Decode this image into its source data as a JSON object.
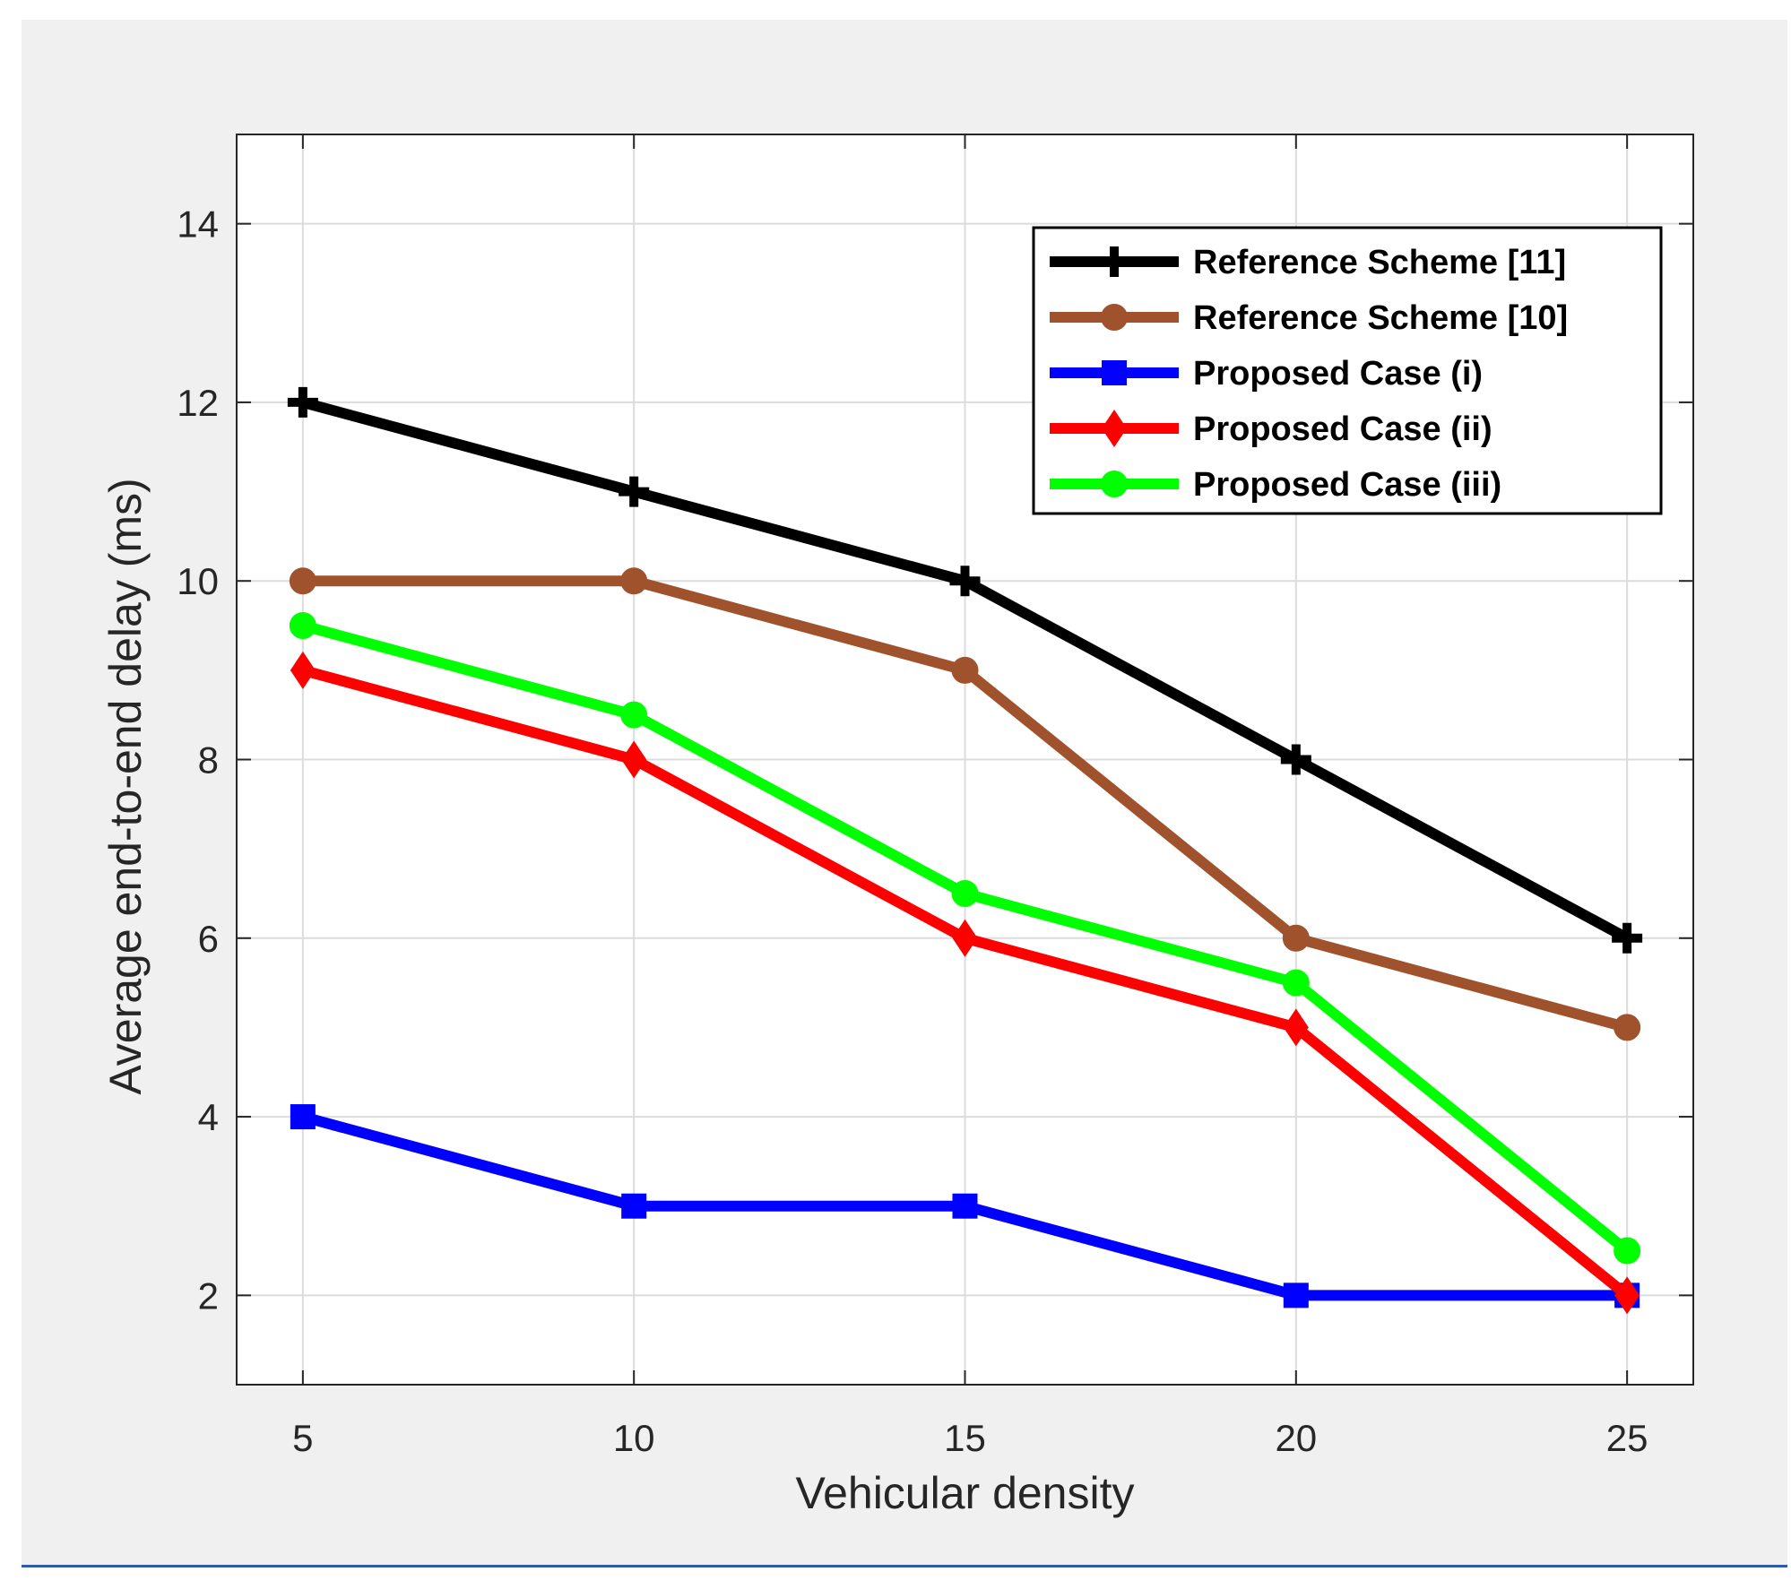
{
  "chart_data": {
    "type": "line",
    "title": "",
    "xlabel": "Vehicular density",
    "ylabel": "Average end-to-end delay (ms)",
    "x": [
      5,
      10,
      15,
      20,
      25
    ],
    "xlim": [
      4,
      26
    ],
    "ylim": [
      1,
      15
    ],
    "xticks": [
      "5",
      "10",
      "15",
      "20",
      "25"
    ],
    "yticks": [
      "2",
      "4",
      "6",
      "8",
      "10",
      "12",
      "14"
    ],
    "grid": true,
    "legend_position": "top-right",
    "series": [
      {
        "name": "Reference Scheme [11]",
        "color": "#000000",
        "marker": "plus",
        "values": [
          12,
          11,
          10,
          8,
          6
        ]
      },
      {
        "name": "Reference Scheme [10]",
        "color": "#a0522d",
        "marker": "circle",
        "values": [
          10,
          10,
          9,
          6,
          5
        ]
      },
      {
        "name": "Proposed Case (i)",
        "color": "#0000ff",
        "marker": "square",
        "values": [
          4,
          3,
          3,
          2,
          2
        ]
      },
      {
        "name": "Proposed Case (ii)",
        "color": "#ff0000",
        "marker": "diamond",
        "values": [
          9,
          8,
          6,
          5,
          2
        ]
      },
      {
        "name": "Proposed Case (iii)",
        "color": "#00ff00",
        "marker": "circle",
        "values": [
          9.5,
          8.5,
          6.5,
          5.5,
          2.5
        ]
      }
    ]
  }
}
